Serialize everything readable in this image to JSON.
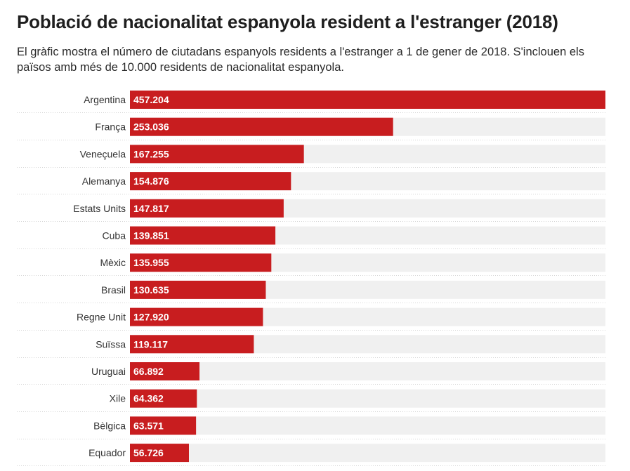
{
  "header": {
    "title": "Població de nacionalitat espanyola resident a l'estranger (2018)",
    "subtitle": "El gràfic mostra el número de ciutadans espanyols residents a l'estranger a 1 de gener de 2018. S'inclouen els països amb més de 10.000 residents de nacionalitat espanyola."
  },
  "colors": {
    "bar": "#c81d1f",
    "track": "#f0f0f0",
    "separator": "#d6d6d6"
  },
  "chart_data": {
    "type": "bar",
    "orientation": "horizontal",
    "title": "Població de nacionalitat espanyola resident a l'estranger (2018)",
    "subtitle": "El gràfic mostra el número de ciutadans espanyols residents a l'estranger a 1 de gener de 2018. S'inclouen els països amb més de 10.000 residents de nacionalitat espanyola.",
    "categories": [
      "Argentina",
      "França",
      "Veneçuela",
      "Alemanya",
      "Estats Units",
      "Cuba",
      "Mèxic",
      "Brasil",
      "Regne Unit",
      "Suïssa",
      "Uruguai",
      "Xile",
      "Bèlgica",
      "Equador"
    ],
    "values": [
      457204,
      253036,
      167255,
      154876,
      147817,
      139851,
      135955,
      130635,
      127920,
      119117,
      66892,
      64362,
      63571,
      56726
    ],
    "value_labels": [
      "457.204",
      "253.036",
      "167.255",
      "154.876",
      "147.817",
      "139.851",
      "135.955",
      "130.635",
      "127.920",
      "119.117",
      "66.892",
      "64.362",
      "63.571",
      "56.726"
    ],
    "xlim": [
      0,
      457204
    ],
    "grid": false,
    "legend": "none"
  }
}
